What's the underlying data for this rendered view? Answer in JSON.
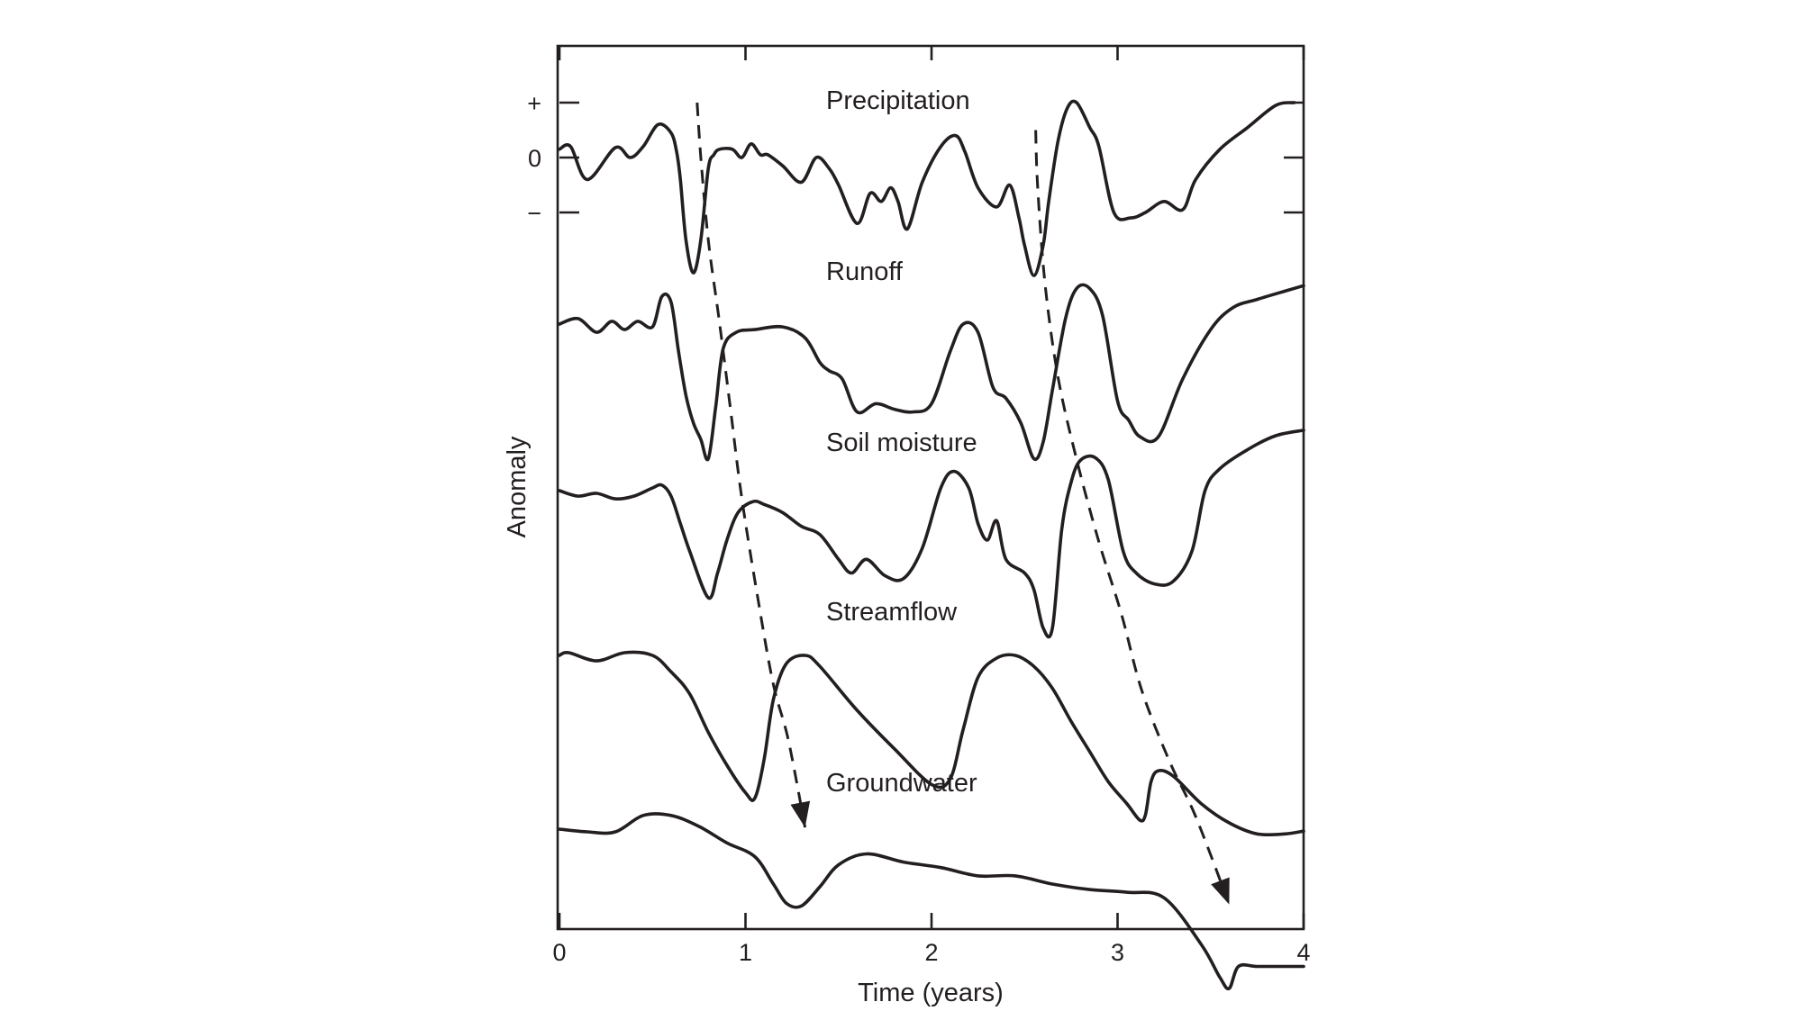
{
  "chart_data": {
    "type": "line",
    "title": "",
    "xlabel": "Time (years)",
    "ylabel": "Anomaly",
    "xlim": [
      0,
      4
    ],
    "x_ticks": [
      0,
      1,
      2,
      3,
      4
    ],
    "x_tick_labels": [
      "0",
      "1",
      "2",
      "3",
      "4"
    ],
    "y_tick_labels": [
      "+",
      "0",
      "−"
    ],
    "grid": false,
    "legend": "inline labels above each curve",
    "series": [
      {
        "name": "Precipitation",
        "label": "Precipitation",
        "baseline": 0.0,
        "x": [
          0.0,
          0.06,
          0.15,
          0.3,
          0.38,
          0.45,
          0.53,
          0.6,
          0.63,
          0.65,
          0.68,
          0.72,
          0.76,
          0.8,
          0.83,
          0.86,
          0.93,
          0.98,
          1.03,
          1.08,
          1.12,
          1.2,
          1.3,
          1.38,
          1.45,
          1.5,
          1.6,
          1.67,
          1.73,
          1.78,
          1.82,
          1.87,
          1.95,
          2.05,
          2.13,
          2.18,
          2.25,
          2.35,
          2.42,
          2.47,
          2.5,
          2.55,
          2.6,
          2.63,
          2.68,
          2.73,
          2.78,
          2.85,
          2.9,
          2.98,
          3.07,
          3.15,
          3.25,
          3.35,
          3.42,
          3.55,
          3.7,
          3.85,
          3.95
        ],
        "y": [
          0.15,
          0.2,
          -0.4,
          0.18,
          0.0,
          0.2,
          0.6,
          0.45,
          0.1,
          -0.4,
          -1.5,
          -2.1,
          -1.5,
          -0.2,
          0.05,
          0.15,
          0.15,
          0.0,
          0.25,
          0.05,
          0.05,
          -0.15,
          -0.45,
          0.0,
          -0.2,
          -0.5,
          -1.2,
          -0.65,
          -0.8,
          -0.55,
          -0.8,
          -1.3,
          -0.45,
          0.2,
          0.4,
          0.1,
          -0.55,
          -0.9,
          -0.5,
          -1.1,
          -1.6,
          -2.15,
          -1.6,
          -0.8,
          0.3,
          0.9,
          1.0,
          0.55,
          0.2,
          -1.0,
          -1.1,
          -1.0,
          -0.8,
          -0.95,
          -0.4,
          0.15,
          0.55,
          0.95,
          1.0
        ]
      },
      {
        "name": "Runoff",
        "label": "Runoff",
        "baseline": 0.0,
        "x": [
          0.0,
          0.1,
          0.2,
          0.28,
          0.35,
          0.42,
          0.5,
          0.55,
          0.6,
          0.64,
          0.68,
          0.72,
          0.76,
          0.8,
          0.84,
          0.88,
          0.95,
          1.05,
          1.2,
          1.32,
          1.4,
          1.45,
          1.52,
          1.6,
          1.7,
          1.8,
          1.9,
          2.0,
          2.1,
          2.17,
          2.25,
          2.33,
          2.4,
          2.48,
          2.55,
          2.6,
          2.65,
          2.72,
          2.78,
          2.85,
          2.92,
          3.0,
          3.06,
          3.12,
          3.22,
          3.35,
          3.5,
          3.62,
          3.75,
          3.9,
          4.0
        ],
        "y": [
          0.0,
          0.1,
          -0.15,
          0.05,
          -0.1,
          0.05,
          -0.05,
          0.5,
          0.4,
          -0.5,
          -1.3,
          -1.8,
          -2.1,
          -2.45,
          -1.5,
          -0.45,
          -0.15,
          -0.1,
          -0.05,
          -0.25,
          -0.7,
          -0.85,
          -1.0,
          -1.6,
          -1.45,
          -1.55,
          -1.6,
          -1.45,
          -0.5,
          0.0,
          -0.15,
          -1.15,
          -1.35,
          -1.8,
          -2.45,
          -2.15,
          -1.2,
          0.1,
          0.65,
          0.65,
          0.15,
          -1.4,
          -1.75,
          -2.05,
          -2.05,
          -1.0,
          -0.1,
          0.3,
          0.45,
          0.6,
          0.7
        ]
      },
      {
        "name": "Soil moisture",
        "label": "Soil moisture",
        "baseline": 0.0,
        "x": [
          0.0,
          0.1,
          0.2,
          0.3,
          0.4,
          0.5,
          0.55,
          0.6,
          0.65,
          0.7,
          0.8,
          0.85,
          0.9,
          0.96,
          1.04,
          1.1,
          1.2,
          1.3,
          1.4,
          1.5,
          1.57,
          1.65,
          1.75,
          1.85,
          1.95,
          2.05,
          2.12,
          2.2,
          2.25,
          2.3,
          2.35,
          2.4,
          2.5,
          2.55,
          2.6,
          2.65,
          2.7,
          2.75,
          2.8,
          2.88,
          2.95,
          3.03,
          3.1,
          3.2,
          3.3,
          3.4,
          3.47,
          3.55,
          3.7,
          3.85,
          4.0
        ],
        "y": [
          0.0,
          -0.1,
          -0.05,
          -0.15,
          -0.1,
          0.05,
          0.1,
          -0.1,
          -0.6,
          -1.1,
          -1.95,
          -1.5,
          -0.9,
          -0.4,
          -0.2,
          -0.25,
          -0.4,
          -0.65,
          -0.8,
          -1.25,
          -1.5,
          -1.25,
          -1.55,
          -1.6,
          -1.05,
          0.05,
          0.35,
          0.05,
          -0.6,
          -0.9,
          -0.55,
          -1.25,
          -1.5,
          -1.8,
          -2.5,
          -2.5,
          -0.7,
          0.15,
          0.55,
          0.6,
          0.2,
          -1.1,
          -1.5,
          -1.7,
          -1.65,
          -1.1,
          0.0,
          0.4,
          0.75,
          1.0,
          1.1
        ]
      },
      {
        "name": "Streamflow",
        "label": "Streamflow",
        "baseline": 0.0,
        "x": [
          0.0,
          0.05,
          0.2,
          0.35,
          0.5,
          0.6,
          0.7,
          0.8,
          0.9,
          1.0,
          1.05,
          1.1,
          1.15,
          1.22,
          1.32,
          1.4,
          1.6,
          1.8,
          2.0,
          2.1,
          2.17,
          2.25,
          2.35,
          2.45,
          2.55,
          2.65,
          2.75,
          2.85,
          2.95,
          3.05,
          3.12,
          3.15,
          3.18,
          3.22,
          3.3,
          3.45,
          3.6,
          3.75,
          3.9,
          4.0
        ],
        "y": [
          0.0,
          0.05,
          -0.1,
          0.05,
          0.0,
          -0.3,
          -0.7,
          -1.4,
          -2.0,
          -2.5,
          -2.6,
          -1.9,
          -0.8,
          -0.15,
          0.0,
          -0.2,
          -1.0,
          -1.7,
          -2.35,
          -2.25,
          -1.35,
          -0.4,
          -0.05,
          0.0,
          -0.2,
          -0.6,
          -1.2,
          -1.75,
          -2.3,
          -2.7,
          -3.0,
          -2.9,
          -2.3,
          -2.1,
          -2.2,
          -2.7,
          -3.05,
          -3.25,
          -3.25,
          -3.2
        ]
      },
      {
        "name": "Groundwater",
        "label": "Groundwater",
        "baseline": 0.0,
        "x": [
          0.0,
          0.15,
          0.3,
          0.45,
          0.6,
          0.75,
          0.9,
          1.05,
          1.15,
          1.22,
          1.3,
          1.4,
          1.5,
          1.65,
          1.85,
          2.05,
          2.25,
          2.45,
          2.65,
          2.85,
          3.05,
          3.25,
          3.45,
          3.55,
          3.6,
          3.65,
          3.75,
          3.9,
          4.0
        ],
        "y": [
          0.0,
          -0.05,
          -0.05,
          0.25,
          0.25,
          0.05,
          -0.25,
          -0.5,
          -1.0,
          -1.35,
          -1.4,
          -1.05,
          -0.65,
          -0.45,
          -0.6,
          -0.7,
          -0.85,
          -0.85,
          -1.0,
          -1.1,
          -1.15,
          -1.25,
          -2.1,
          -2.7,
          -2.9,
          -2.5,
          -2.5,
          -2.5,
          -2.5
        ]
      }
    ],
    "lag_arrows": [
      {
        "x": [
          0.74,
          0.76,
          0.8,
          0.86,
          0.92,
          0.98,
          1.07,
          1.15,
          1.23,
          1.32
        ],
        "y": [
          1.0,
          0.0,
          -1.5,
          -3.0,
          -4.6,
          -6.2,
          -8.1,
          -9.6,
          -10.6,
          -12.2
        ]
      },
      {
        "x": [
          2.56,
          2.57,
          2.61,
          2.68,
          2.78,
          2.9,
          3.02,
          3.13,
          3.28,
          3.42,
          3.6
        ],
        "y": [
          0.5,
          -0.5,
          -2.3,
          -4.0,
          -5.5,
          -7.0,
          -8.3,
          -9.7,
          -11.0,
          -12.0,
          -13.6
        ]
      }
    ]
  }
}
